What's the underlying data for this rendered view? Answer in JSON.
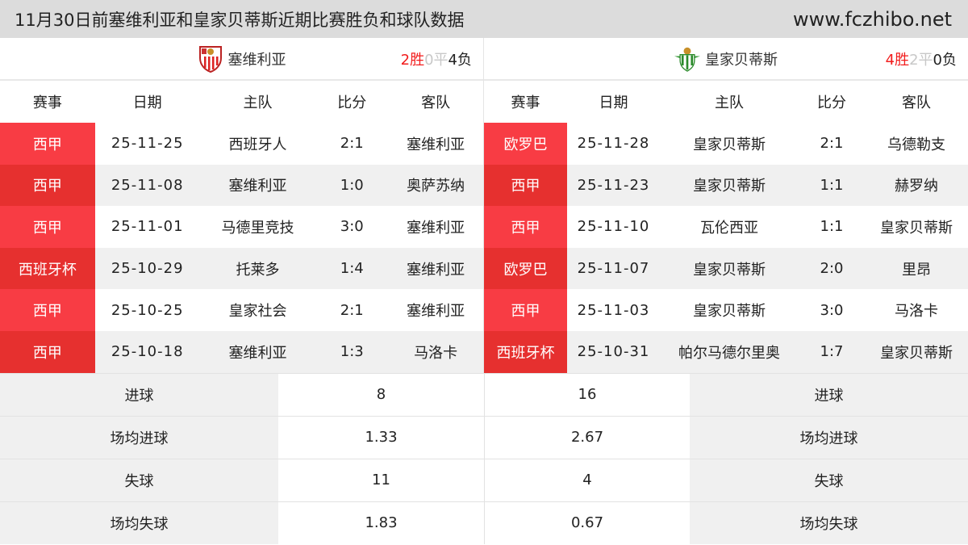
{
  "header": {
    "title": "11月30日前塞维利亚和皇家贝蒂斯近期比赛胜负和球队数据",
    "site": "www.fczhibo.net"
  },
  "columns": [
    "赛事",
    "日期",
    "主队",
    "比分",
    "客队"
  ],
  "left": {
    "team": "塞维利亚",
    "crest": "sevilla-crest-icon",
    "record": {
      "w": "2胜",
      "d": "0平",
      "l": "4负"
    },
    "matches": [
      [
        "西甲",
        "25-11-25",
        "西班牙人",
        "2:1",
        "塞维利亚"
      ],
      [
        "西甲",
        "25-11-08",
        "塞维利亚",
        "1:0",
        "奥萨苏纳"
      ],
      [
        "西甲",
        "25-11-01",
        "马德里竞技",
        "3:0",
        "塞维利亚"
      ],
      [
        "西班牙杯",
        "25-10-29",
        "托莱多",
        "1:4",
        "塞维利亚"
      ],
      [
        "西甲",
        "25-10-25",
        "皇家社会",
        "2:1",
        "塞维利亚"
      ],
      [
        "西甲",
        "25-10-18",
        "塞维利亚",
        "1:3",
        "马洛卡"
      ]
    ]
  },
  "right": {
    "team": "皇家贝蒂斯",
    "crest": "betis-crest-icon",
    "record": {
      "w": "4胜",
      "d": "2平",
      "l": "0负"
    },
    "matches": [
      [
        "欧罗巴",
        "25-11-28",
        "皇家贝蒂斯",
        "2:1",
        "乌德勒支"
      ],
      [
        "西甲",
        "25-11-23",
        "皇家贝蒂斯",
        "1:1",
        "赫罗纳"
      ],
      [
        "西甲",
        "25-11-10",
        "瓦伦西亚",
        "1:1",
        "皇家贝蒂斯"
      ],
      [
        "欧罗巴",
        "25-11-07",
        "皇家贝蒂斯",
        "2:0",
        "里昂"
      ],
      [
        "西甲",
        "25-11-03",
        "皇家贝蒂斯",
        "3:0",
        "马洛卡"
      ],
      [
        "西班牙杯",
        "25-10-31",
        "帕尔马德尔里奥",
        "1:7",
        "皇家贝蒂斯"
      ]
    ]
  },
  "stats": [
    {
      "label": "进球",
      "left": "8",
      "right": "16"
    },
    {
      "label": "场均进球",
      "left": "1.33",
      "right": "2.67"
    },
    {
      "label": "失球",
      "left": "11",
      "right": "4"
    },
    {
      "label": "场均失球",
      "left": "1.83",
      "right": "0.67"
    }
  ],
  "colors": {
    "win": "#f21d1d",
    "draw": "#c8c8c8",
    "comp_odd": "#f83c44",
    "comp_even": "#e6302f"
  }
}
